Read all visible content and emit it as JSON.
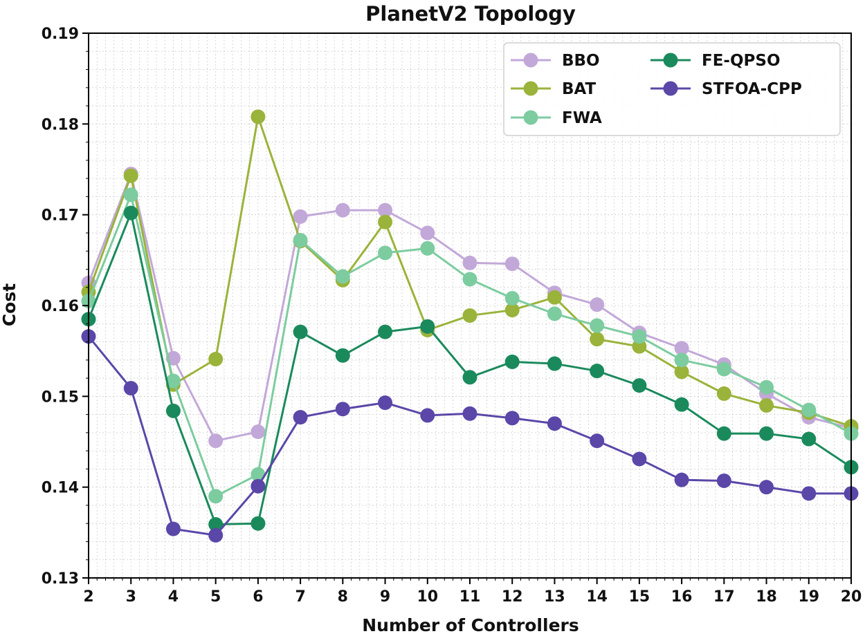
{
  "chart_data": {
    "type": "line",
    "title": "PlanetV2 Topology",
    "xlabel": "Number of Controllers",
    "ylabel": "Cost",
    "x": [
      2,
      3,
      4,
      5,
      6,
      7,
      8,
      9,
      10,
      11,
      12,
      13,
      14,
      15,
      16,
      17,
      18,
      19,
      20
    ],
    "xlim": [
      2,
      20
    ],
    "ylim": [
      0.13,
      0.19
    ],
    "yticks": [
      0.13,
      0.14,
      0.15,
      0.16,
      0.17,
      0.18,
      0.19
    ],
    "ytick_labels": [
      "0.13",
      "0.14",
      "0.15",
      "0.16",
      "0.17",
      "0.18",
      "0.19"
    ],
    "xtick_labels": [
      "2",
      "3",
      "4",
      "5",
      "6",
      "7",
      "8",
      "9",
      "10",
      "11",
      "12",
      "13",
      "14",
      "15",
      "16",
      "17",
      "18",
      "19",
      "20"
    ],
    "grid": true,
    "legend_position": "top-right",
    "series": [
      {
        "name": "BBO",
        "color": "#c2a8d8",
        "values": [
          0.1625,
          0.1745,
          0.1542,
          0.1451,
          0.1461,
          0.1698,
          0.1705,
          0.1705,
          0.168,
          0.1647,
          0.1646,
          0.1614,
          0.1601,
          0.157,
          0.1553,
          0.1535,
          0.1503,
          0.1477,
          0.1465
        ]
      },
      {
        "name": "BAT",
        "color": "#9ab33a",
        "values": [
          0.1615,
          0.1743,
          0.1513,
          0.1541,
          0.1808,
          0.1671,
          0.1628,
          0.1692,
          0.1573,
          0.1589,
          0.1595,
          0.1609,
          0.1563,
          0.1555,
          0.1527,
          0.1503,
          0.149,
          0.1482,
          0.1467
        ]
      },
      {
        "name": "FWA",
        "color": "#7ccc9f",
        "values": [
          0.1605,
          0.1722,
          0.1517,
          0.139,
          0.1414,
          0.1672,
          0.1632,
          0.1658,
          0.1663,
          0.1629,
          0.1608,
          0.1591,
          0.1578,
          0.1566,
          0.154,
          0.153,
          0.151,
          0.1485,
          0.1459
        ]
      },
      {
        "name": "FE-QPSO",
        "color": "#1a8a5c",
        "values": [
          0.1585,
          0.1702,
          0.1484,
          0.1359,
          0.136,
          0.1571,
          0.1545,
          0.1571,
          0.1577,
          0.1521,
          0.1538,
          0.1536,
          0.1528,
          0.1512,
          0.1491,
          0.1459,
          0.1459,
          0.1453,
          0.1422
        ]
      },
      {
        "name": "STFOA-CPP",
        "color": "#5a47a8",
        "values": [
          0.1566,
          0.1509,
          0.1354,
          0.1347,
          0.1401,
          0.1477,
          0.1486,
          0.1493,
          0.1479,
          0.1481,
          0.1476,
          0.147,
          0.1451,
          0.1431,
          0.1408,
          0.1407,
          0.14,
          0.1393,
          0.1393
        ]
      }
    ]
  }
}
